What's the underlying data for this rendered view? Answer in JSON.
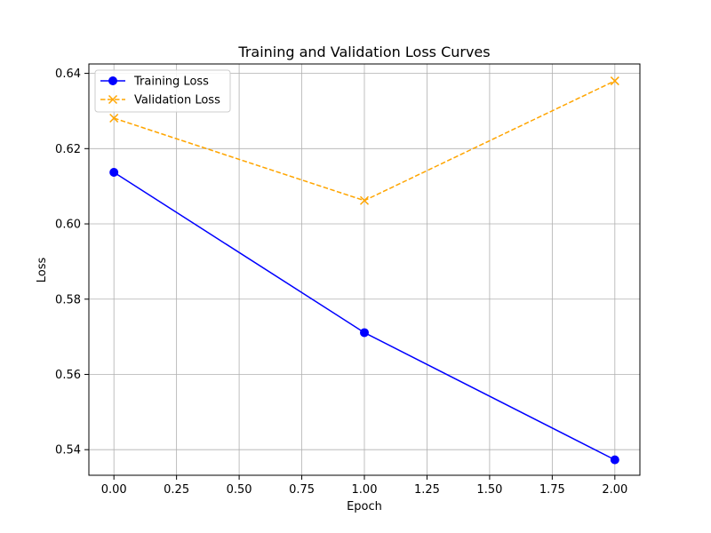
{
  "chart_data": {
    "type": "line",
    "title": "Training and Validation Loss Curves",
    "xlabel": "Epoch",
    "ylabel": "Loss",
    "xlim": [
      -0.1,
      2.1
    ],
    "ylim": [
      0.5332,
      0.6425
    ],
    "x_ticks": [
      0.0,
      0.25,
      0.5,
      0.75,
      1.0,
      1.25,
      1.5,
      1.75,
      2.0
    ],
    "x_tick_labels": [
      "0.00",
      "0.25",
      "0.50",
      "0.75",
      "1.00",
      "1.25",
      "1.50",
      "1.75",
      "2.00"
    ],
    "y_ticks": [
      0.54,
      0.56,
      0.58,
      0.6,
      0.62,
      0.64
    ],
    "y_tick_labels": [
      "0.54",
      "0.56",
      "0.58",
      "0.60",
      "0.62",
      "0.64"
    ],
    "grid": true,
    "legend_position": "upper-left",
    "x": [
      0,
      1,
      2
    ],
    "series": [
      {
        "name": "Training Loss",
        "values": [
          0.6137,
          0.5711,
          0.5373
        ],
        "color": "#0000ff",
        "line_style": "solid",
        "marker": "circle"
      },
      {
        "name": "Validation Loss",
        "values": [
          0.6281,
          0.6062,
          0.638
        ],
        "color": "#ffa500",
        "line_style": "dashed",
        "marker": "x"
      }
    ]
  }
}
